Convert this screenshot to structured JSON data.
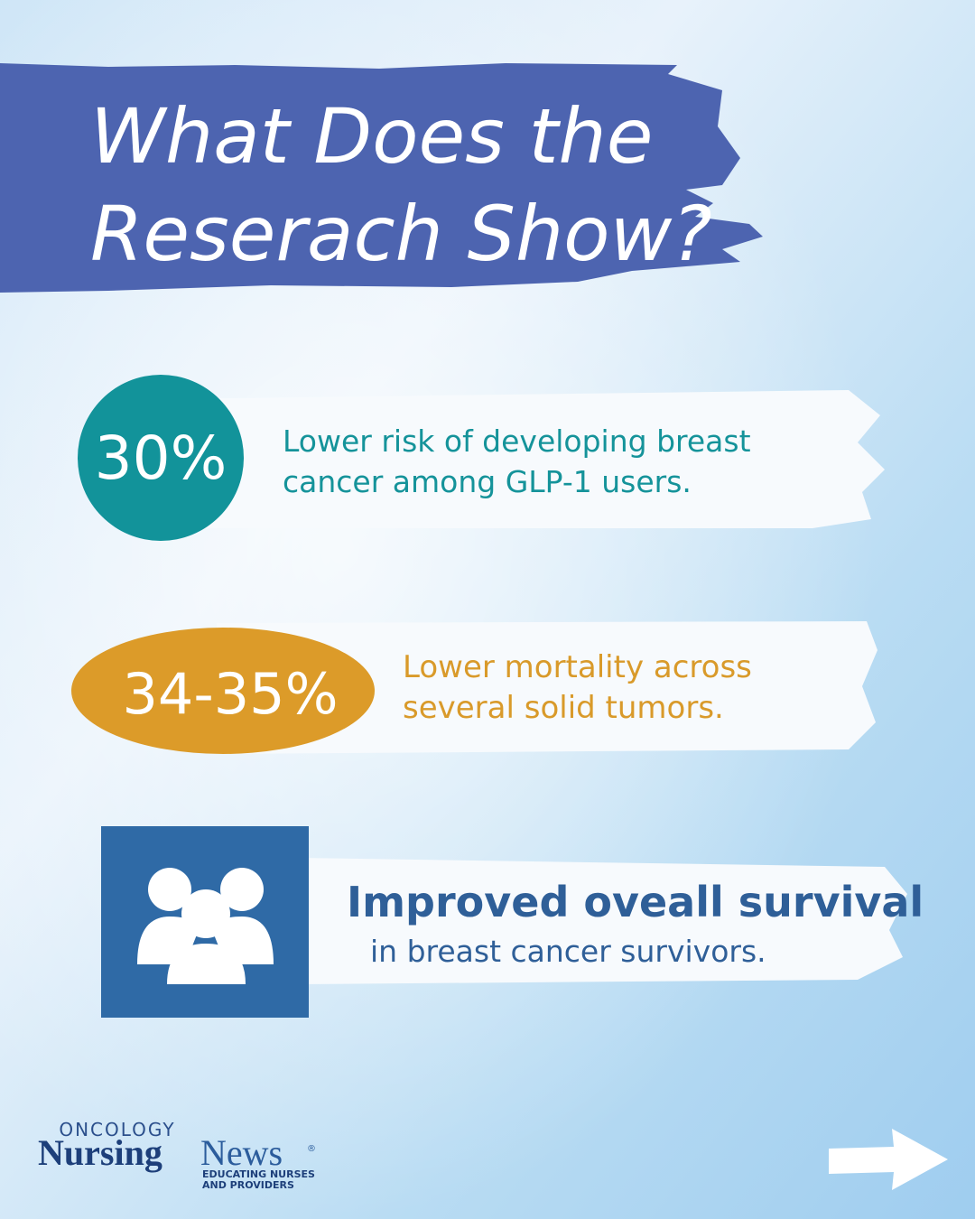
{
  "header": {
    "title_lines": [
      "What Does the",
      "Reserach Show?"
    ]
  },
  "items": [
    {
      "stat": "30%",
      "lines": [
        "Lower risk of developing breast",
        "cancer among GLP-1 users."
      ]
    },
    {
      "stat": "34-35%",
      "lines": [
        "Lower mortality across",
        "several solid tumors."
      ]
    },
    {
      "headline": "Improved oveall survival",
      "lines": [
        "in breast cancer survivors."
      ]
    }
  ],
  "logo": {
    "top": "ONCOLOGY",
    "main": "Nursing",
    "second": "News",
    "mark": "®",
    "tagline": [
      "EDUCATING NURSES",
      "AND PROVIDERS"
    ]
  }
}
